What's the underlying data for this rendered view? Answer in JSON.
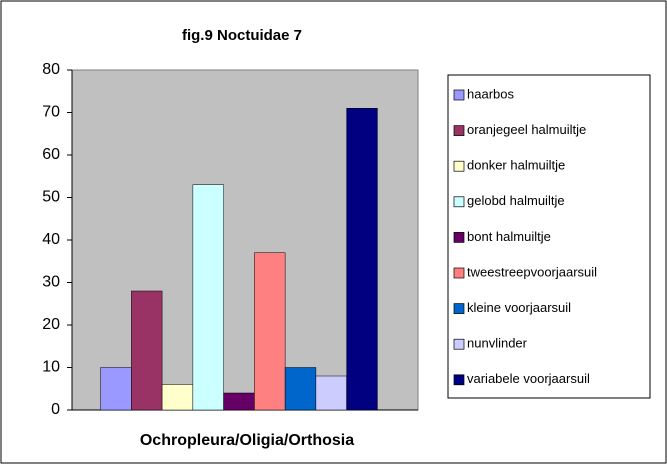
{
  "chart_data": {
    "type": "bar",
    "title": "fig.9  Noctuidae 7",
    "categories": [
      "Ochropleura/Oligia/Orthosia"
    ],
    "series": [
      {
        "name": "haarbos",
        "color": "#9999ff",
        "values": [
          10
        ]
      },
      {
        "name": "oranjegeel halmuiltje",
        "color": "#993366",
        "values": [
          28
        ]
      },
      {
        "name": "donker halmuiltje",
        "color": "#ffffcc",
        "values": [
          6
        ]
      },
      {
        "name": "gelobd halmuiltje",
        "color": "#ccffff",
        "values": [
          53
        ]
      },
      {
        "name": "bont halmuiltje",
        "color": "#660066",
        "values": [
          4
        ]
      },
      {
        "name": "tweestreepvoorjaarsuil",
        "color": "#ff8080",
        "values": [
          37
        ]
      },
      {
        "name": "kleine voorjaarsuil",
        "color": "#0066cc",
        "values": [
          10
        ]
      },
      {
        "name": "nunvlinder",
        "color": "#ccccff",
        "values": [
          8
        ]
      },
      {
        "name": "variabele voorjaarsuil",
        "color": "#000080",
        "values": [
          71
        ]
      }
    ],
    "ylim": [
      0,
      80
    ],
    "yticks": [
      0,
      10,
      20,
      30,
      40,
      50,
      60,
      70,
      80
    ],
    "grid": false,
    "legend": "right"
  }
}
